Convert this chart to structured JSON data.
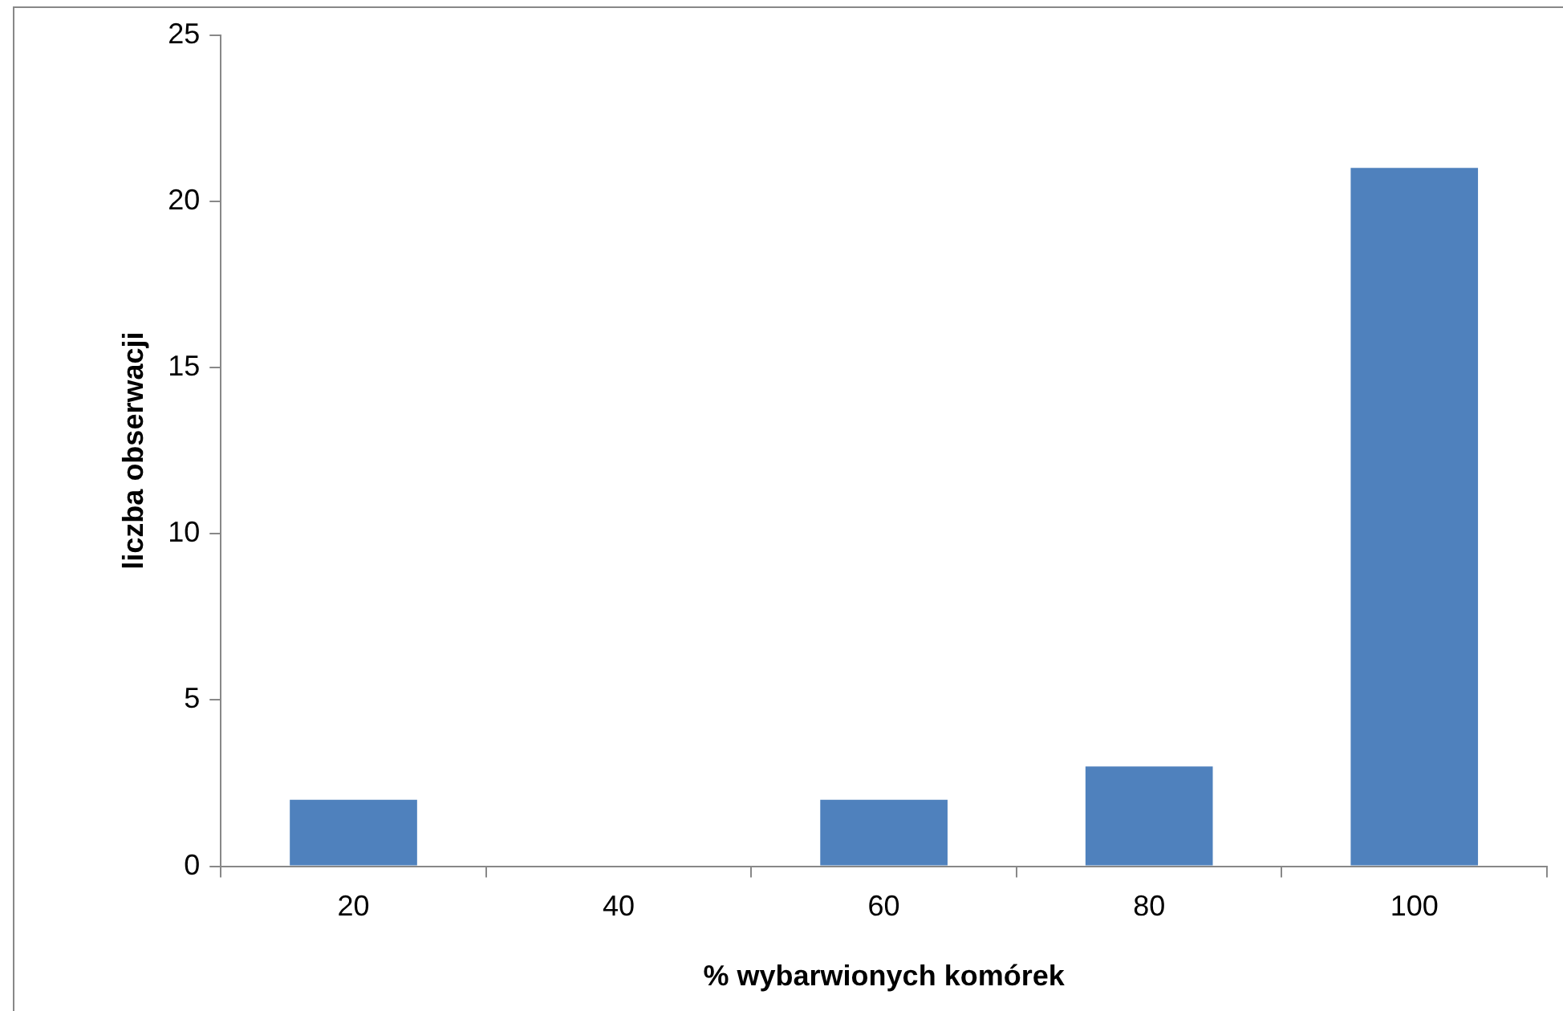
{
  "chart_data": {
    "type": "bar",
    "xlabel": "% wybarwionych komórek",
    "ylabel": "liczba obserwacji",
    "categories": [
      "20",
      "40",
      "60",
      "80",
      "100"
    ],
    "values": [
      2,
      0,
      2,
      3,
      21
    ],
    "color": "#4f81bd",
    "ylim": [
      0,
      25
    ],
    "yticks": [
      0,
      5,
      10,
      15,
      20,
      25
    ]
  }
}
